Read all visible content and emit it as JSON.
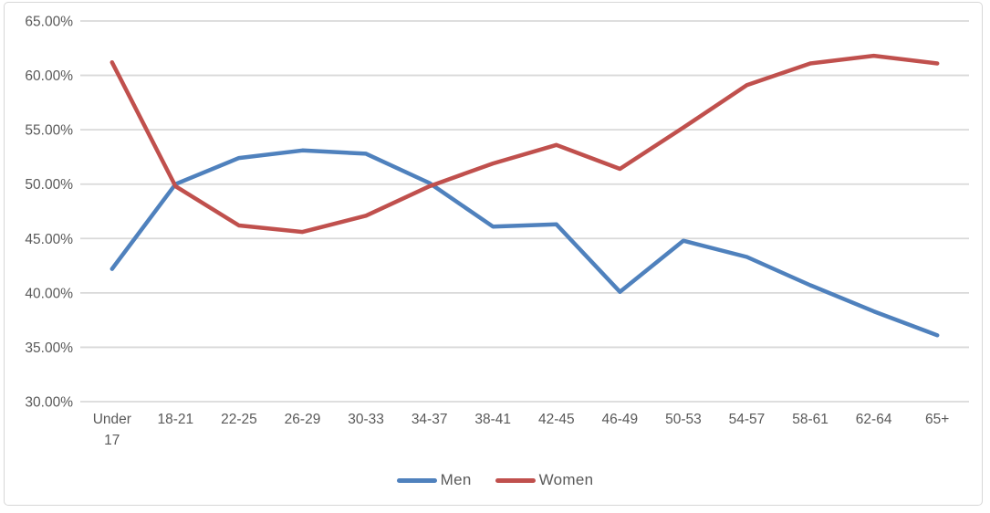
{
  "chart_data": {
    "type": "line",
    "title": "",
    "categories": [
      "Under 17",
      "18-21",
      "22-25",
      "26-29",
      "30-33",
      "34-37",
      "38-41",
      "42-45",
      "46-49",
      "50-53",
      "54-57",
      "58-61",
      "62-64",
      "65+"
    ],
    "series": [
      {
        "name": "Men",
        "color": "#4F81BD",
        "values": [
          42.2,
          50.0,
          52.4,
          53.1,
          52.8,
          50.1,
          46.1,
          46.3,
          40.1,
          44.8,
          43.3,
          40.7,
          38.3,
          36.1
        ]
      },
      {
        "name": "Women",
        "color": "#C0504D",
        "values": [
          61.2,
          49.8,
          46.2,
          45.6,
          47.1,
          49.8,
          51.9,
          53.6,
          51.4,
          55.2,
          59.1,
          61.1,
          61.8,
          61.1
        ]
      }
    ],
    "ylim": [
      30,
      65
    ],
    "ytick_values": [
      30,
      35,
      40,
      45,
      50,
      55,
      60,
      65
    ],
    "ytick_labels": [
      "30.00%",
      "35.00%",
      "40.00%",
      "45.00%",
      "50.00%",
      "55.00%",
      "60.00%",
      "65.00%"
    ],
    "xlabel": "",
    "ylabel": "",
    "grid": true,
    "legend_position": "bottom"
  },
  "style": {
    "gridline_color": "#d9d9d9",
    "tick_label_color": "#595959",
    "frame_border_color": "#d7d7d7",
    "background_color": "#ffffff"
  }
}
